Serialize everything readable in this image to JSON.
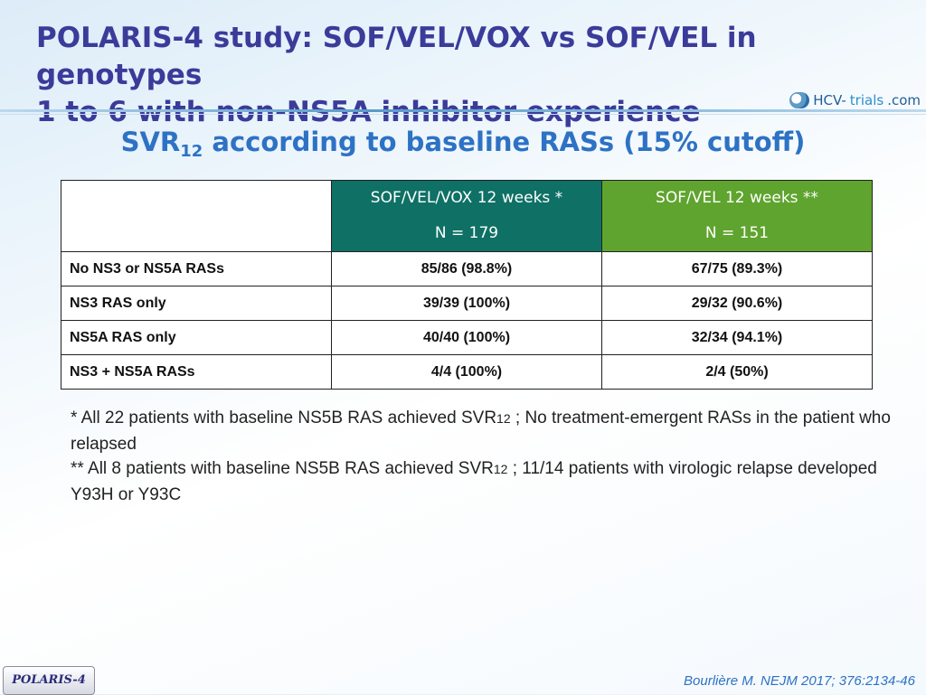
{
  "slide": {
    "title_line1": "POLARIS-4 study: SOF/VEL/VOX vs SOF/VEL in genotypes",
    "title_line2": "1 to 6 with non-NS5A inhibitor experience",
    "logo": {
      "part1": "HCV-",
      "part2": "trials",
      "part3": ".com"
    },
    "subtitle": {
      "main": "SVR",
      "sub": "12",
      "rest": " according to baseline RASs (15% cutoff)"
    },
    "table": {
      "headers": [
        {
          "line1": "SOF/VEL/VOX 12 weeks *",
          "line2": "N = 179",
          "color": "#0f7065"
        },
        {
          "line1": "SOF/VEL 12 weeks **",
          "line2": "N = 151",
          "color": "#5fa42e"
        }
      ],
      "rows": [
        {
          "label": "No NS3 or NS5A RASs",
          "values": [
            "85/86 (98.8%)",
            "67/75 (89.3%)"
          ]
        },
        {
          "label": "NS3 RAS only",
          "values": [
            "39/39 (100%)",
            "29/32 (90.6%)"
          ]
        },
        {
          "label": "NS5A RAS only",
          "values": [
            "40/40 (100%)",
            "32/34 (94.1%)"
          ]
        },
        {
          "label": "NS3 + NS5A RASs",
          "values": [
            "4/4 (100%)",
            "2/4 (50%)"
          ]
        }
      ]
    },
    "notes": {
      "n1_a": "* All 22 patients with baseline NS5B RAS achieved SVR",
      "n1_sub": "12",
      "n1_b": " ; No treatment-emergent RASs in the patient who relapsed",
      "n2_a": " ** All 8 patients with baseline NS5B RAS achieved SVR",
      "n2_sub": "12",
      "n2_b": " ; 11/14 patients with virologic relapse developed Y93H or Y93C"
    },
    "badge": "POLARIS-4",
    "reference": "Bourlière M. NEJM 2017; 376:2134-46"
  }
}
